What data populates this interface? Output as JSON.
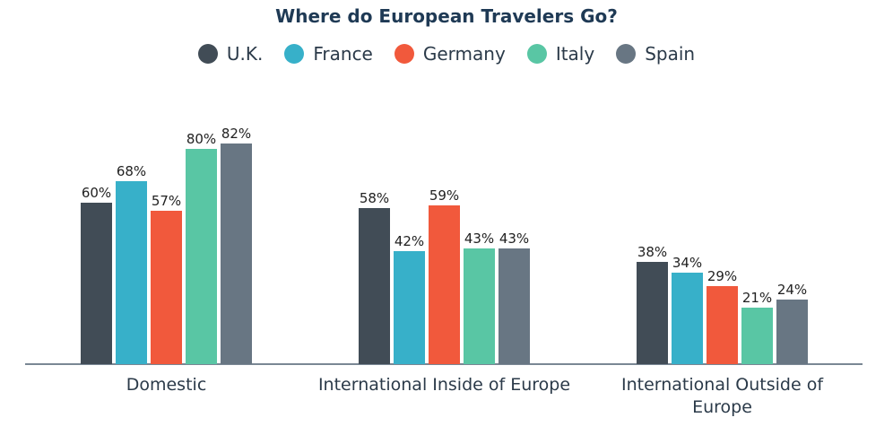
{
  "chart_data": {
    "type": "bar",
    "title": "Where do European Travelers Go?",
    "categories": [
      "Domestic",
      "International Inside of Europe",
      "International Outside of Europe"
    ],
    "category_lines": [
      [
        "Domestic"
      ],
      [
        "International Inside of Europe"
      ],
      [
        "International Outside of",
        "Europe"
      ]
    ],
    "series": [
      {
        "name": "U.K.",
        "color": "#414c56",
        "values": [
          60,
          58,
          38
        ]
      },
      {
        "name": "France",
        "color": "#37b0c9",
        "values": [
          68,
          42,
          34
        ]
      },
      {
        "name": "Germany",
        "color": "#f1593c",
        "values": [
          57,
          59,
          29
        ]
      },
      {
        "name": "Italy",
        "color": "#59c6a4",
        "values": [
          80,
          43,
          21
        ]
      },
      {
        "name": "Spain",
        "color": "#687683",
        "values": [
          82,
          43,
          24
        ]
      }
    ],
    "value_suffix": "%",
    "ylim": [
      0,
      100
    ],
    "grid": false,
    "legend_position": "top-center"
  }
}
